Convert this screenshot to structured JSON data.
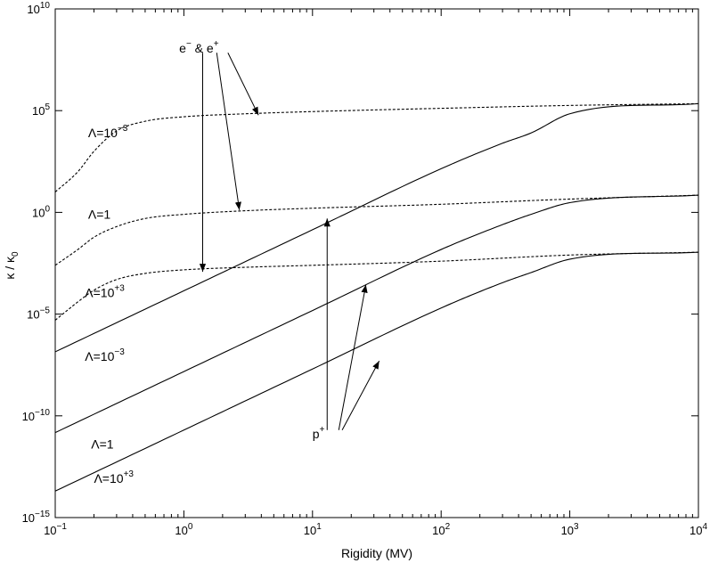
{
  "chart_data": {
    "type": "line",
    "xlabel": "Rigidity (MV)",
    "ylabel": "κ / κ0",
    "ylabel_main": "κ / κ",
    "ylabel_sub": "0",
    "xscale": "log",
    "yscale": "log",
    "xlim": [
      0.1,
      10000
    ],
    "ylim": [
      1e-15,
      10000000000.0
    ],
    "grid": false,
    "x_ticks": [
      {
        "base": "10",
        "exp": "−1"
      },
      {
        "base": "10",
        "exp": "0"
      },
      {
        "base": "10",
        "exp": "1"
      },
      {
        "base": "10",
        "exp": "2"
      },
      {
        "base": "10",
        "exp": "3"
      },
      {
        "base": "10",
        "exp": "4"
      }
    ],
    "y_ticks": [
      {
        "base": "10",
        "exp": "−15"
      },
      {
        "base": "10",
        "exp": "−10"
      },
      {
        "base": "10",
        "exp": "−5"
      },
      {
        "base": "10",
        "exp": "0"
      },
      {
        "base": "10",
        "exp": "5"
      },
      {
        "base": "10",
        "exp": "10"
      }
    ],
    "series": [
      {
        "group": "e",
        "label": "Λ=10^-3",
        "style": "dashed",
        "x": [
          0.1,
          0.15,
          0.2,
          0.3,
          0.5,
          1,
          3,
          10,
          100,
          1000,
          10000
        ],
        "y": [
          10,
          100,
          1000,
          10000,
          30000,
          50000,
          70000,
          90000,
          130000,
          180000,
          220000
        ]
      },
      {
        "group": "e",
        "label": "Λ=1",
        "style": "dashed",
        "x": [
          0.1,
          0.15,
          0.2,
          0.3,
          0.5,
          1,
          3,
          10,
          100,
          1000,
          10000
        ],
        "y": [
          0.0025,
          0.015,
          0.06,
          0.2,
          0.5,
          0.8,
          1.2,
          1.6,
          2.5,
          4.5,
          7
        ]
      },
      {
        "group": "e",
        "label": "Λ=10^+3",
        "style": "dashed",
        "x": [
          0.1,
          0.15,
          0.2,
          0.3,
          0.5,
          1,
          3,
          10,
          100,
          1000,
          10000
        ],
        "y": [
          5e-06,
          4e-05,
          0.00015,
          0.0005,
          0.001,
          0.0015,
          0.002,
          0.0025,
          0.004,
          0.008,
          0.011
        ]
      },
      {
        "group": "p",
        "label": "Λ=10^-3",
        "style": "solid",
        "x": [
          0.1,
          1,
          10,
          100,
          300,
          500,
          1000,
          10000
        ],
        "y": [
          1.4e-07,
          0.00014,
          0.14,
          140,
          2500,
          8000,
          70000,
          220000
        ]
      },
      {
        "group": "p",
        "label": "Λ=1",
        "style": "solid",
        "x": [
          0.1,
          1,
          10,
          100,
          300,
          500,
          1000,
          10000
        ],
        "y": [
          1.5e-11,
          1.5e-08,
          1.5e-05,
          0.015,
          0.25,
          0.8,
          3,
          7
        ]
      },
      {
        "group": "p",
        "label": "Λ=10^+3",
        "style": "solid",
        "x": [
          0.1,
          1,
          10,
          100,
          300,
          500,
          1000,
          10000
        ],
        "y": [
          2e-14,
          2e-11,
          2e-08,
          2e-05,
          0.00035,
          0.0011,
          0.005,
          0.011
        ]
      }
    ],
    "annotations": [
      {
        "id": "e-label",
        "text": "e− & e+",
        "parts": [
          {
            "t": "e"
          },
          {
            "t": "−",
            "sup": true
          },
          {
            "t": " & e"
          },
          {
            "t": "+",
            "sup": true
          }
        ],
        "x": 0.92,
        "y": 70000000
      },
      {
        "id": "e-lam-m3",
        "parts": [
          {
            "t": "Λ=10"
          },
          {
            "t": "−3",
            "sup": true
          }
        ],
        "x": 0.18,
        "y": 5000
      },
      {
        "id": "e-lam-1",
        "parts": [
          {
            "t": "Λ=1"
          }
        ],
        "x": 0.18,
        "y": 0.5
      },
      {
        "id": "e-lam-p3",
        "parts": [
          {
            "t": "Λ=10"
          },
          {
            "t": "+3",
            "sup": true
          }
        ],
        "x": 0.17,
        "y": 7e-05
      },
      {
        "id": "p-lam-m3",
        "parts": [
          {
            "t": "Λ=10"
          },
          {
            "t": "−3",
            "sup": true
          }
        ],
        "x": 0.17,
        "y": 5e-08
      },
      {
        "id": "p-lam-1",
        "parts": [
          {
            "t": "Λ=1"
          }
        ],
        "x": 0.19,
        "y": 2.5e-12
      },
      {
        "id": "p-lam-p3",
        "parts": [
          {
            "t": "Λ=10"
          },
          {
            "t": "+3",
            "sup": true
          }
        ],
        "x": 0.2,
        "y": 5e-14
      },
      {
        "id": "p-label",
        "parts": [
          {
            "t": "p"
          },
          {
            "t": "+",
            "sup": true
          }
        ],
        "x": 10,
        "y": 8e-12
      }
    ],
    "arrows": [
      {
        "from": [
          1.4,
          70000000.0
        ],
        "to": [
          1.4,
          0.0012
        ]
      },
      {
        "from": [
          1.8,
          70000000.0
        ],
        "to": [
          2.7,
          1.3
        ]
      },
      {
        "from": [
          2.2,
          70000000.0
        ],
        "to": [
          3.8,
          60000
        ]
      },
      {
        "from": [
          13,
          2e-11
        ],
        "to": [
          13,
          0.5
        ]
      },
      {
        "from": [
          16,
          2e-11
        ],
        "to": [
          26,
          0.00028
        ]
      },
      {
        "from": [
          17,
          2e-11
        ],
        "to": [
          33,
          5e-08
        ]
      }
    ]
  }
}
